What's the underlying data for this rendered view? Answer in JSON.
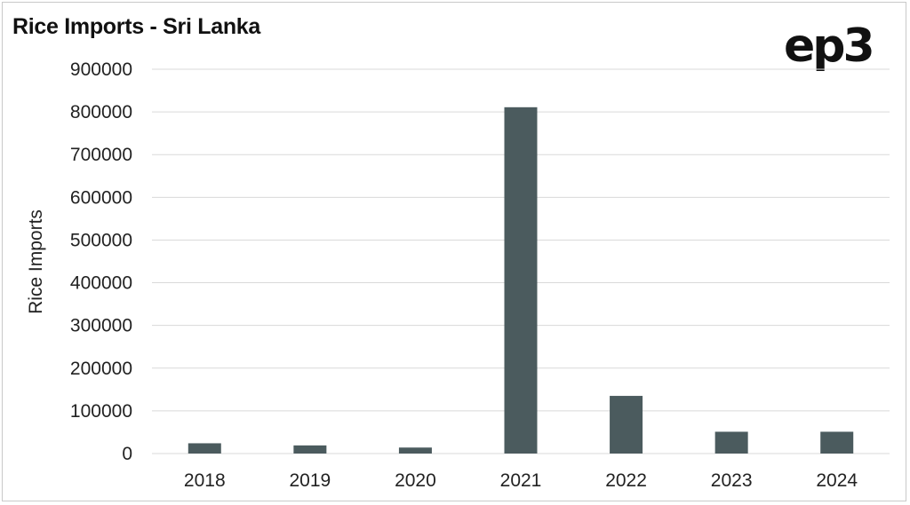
{
  "header": {
    "title": "Rice Imports - Sri Lanka",
    "logo": "ep3"
  },
  "colors": {
    "bar": "#4b5b5e",
    "grid": "#d9d9d9",
    "text": "#222222"
  },
  "chart_data": {
    "type": "bar",
    "title": "Rice Imports - Sri Lanka",
    "xlabel": "",
    "ylabel": "Rice Imports",
    "categories": [
      "2018",
      "2019",
      "2020",
      "2021",
      "2022",
      "2023",
      "2024"
    ],
    "values": [
      24000,
      19000,
      14000,
      811000,
      135000,
      51000,
      51000
    ],
    "ylim": [
      0,
      900000
    ],
    "yticks": [
      0,
      100000,
      200000,
      300000,
      400000,
      500000,
      600000,
      700000,
      800000,
      900000
    ],
    "grid": true,
    "legend": "none"
  }
}
